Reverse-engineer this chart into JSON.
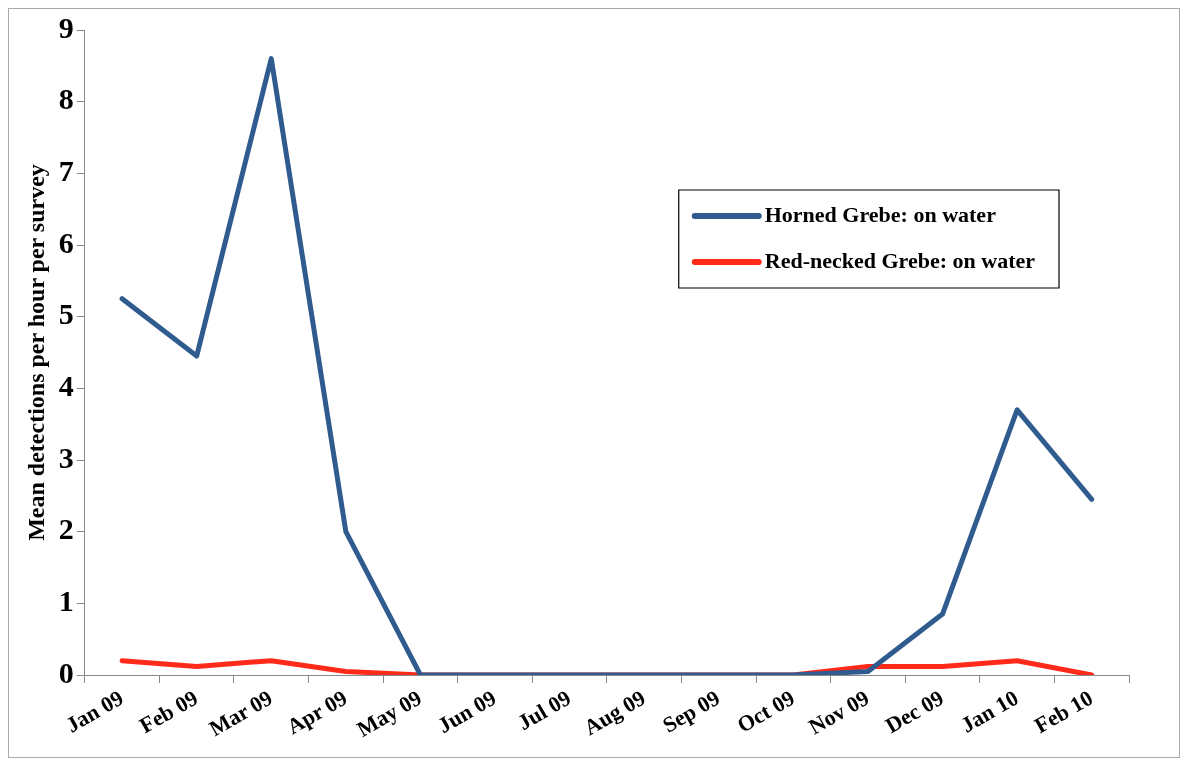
{
  "chart_data": {
    "type": "line",
    "ylabel": "Mean detections per hour per survey",
    "categories": [
      "Jan 09",
      "Feb 09",
      "Mar 09",
      "Apr 09",
      "May 09",
      "Jun 09",
      "Jul 09",
      "Aug 09",
      "Sep 09",
      "Oct 09",
      "Nov 09",
      "Dec 09",
      "Jan 10",
      "Feb 10"
    ],
    "series": [
      {
        "name": "Horned Grebe: on water",
        "color": "#2f5b8f",
        "values": [
          5.25,
          4.45,
          8.6,
          2.0,
          0,
          0,
          0,
          0,
          0,
          0,
          0.05,
          0.85,
          3.7,
          2.45
        ]
      },
      {
        "name": "Red-necked Grebe: on water",
        "color": "#ff2a1a",
        "values": [
          0.2,
          0.12,
          0.2,
          0.05,
          0,
          0,
          0,
          0,
          0,
          0,
          0.12,
          0.12,
          0.2,
          0
        ]
      }
    ],
    "ylim": [
      0,
      9
    ],
    "yticks": [
      0,
      1,
      2,
      3,
      4,
      5,
      6,
      7,
      8,
      9
    ],
    "grid": false,
    "legend": "top right",
    "marker": "none",
    "line_style": "solid"
  }
}
